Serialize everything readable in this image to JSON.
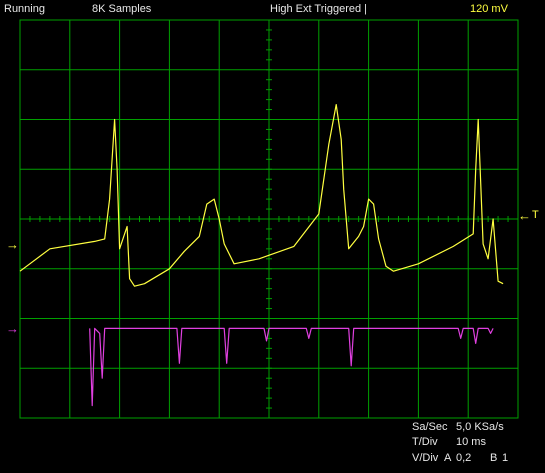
{
  "status": {
    "run_state": "Running",
    "samples": "8K Samples",
    "trigger": "High Ext Triggered",
    "trigger_marker": "|",
    "level": "120 mV",
    "level_color": "#ffff40"
  },
  "markers": {
    "trigger_level": "T",
    "trigger_level_arrow": "←",
    "channel_a_arrow": "→",
    "channel_b_arrow": "→"
  },
  "readout": {
    "samplerate_label": "Sa/Sec",
    "samplerate_value": "5,0 KSa/s",
    "timediv_label": "T/Div",
    "timediv_value": "10 ms",
    "voltdiv_label": "V/Div",
    "channel_a_label": "A",
    "channel_a_value": "0,2",
    "channel_b_label": "B",
    "channel_b_value": "1"
  },
  "colors": {
    "grid": "#00a000",
    "channel_a": "#ffff40",
    "channel_b": "#e040e0",
    "background": "#000000"
  },
  "chart_data": {
    "type": "line",
    "title": "",
    "xlabel": "",
    "ylabel": "",
    "x_unit": "ms",
    "grid": true,
    "xlim": [
      0,
      100
    ],
    "ylim_divisions": [
      -4,
      4
    ],
    "series": [
      {
        "channel": "A",
        "color": "#ffff40",
        "points": [
          [
            0,
            -1.05
          ],
          [
            6,
            -0.6
          ],
          [
            15,
            -0.45
          ],
          [
            17,
            -0.4
          ],
          [
            18,
            0.4
          ],
          [
            19,
            2.0
          ],
          [
            19.5,
            1.0
          ],
          [
            20,
            -0.6
          ],
          [
            21,
            -0.3
          ],
          [
            21.5,
            -0.15
          ],
          [
            22,
            -1.2
          ],
          [
            23,
            -1.35
          ],
          [
            25,
            -1.3
          ],
          [
            30,
            -1.0
          ],
          [
            33,
            -0.65
          ],
          [
            36,
            -0.35
          ],
          [
            37.5,
            0.3
          ],
          [
            39,
            0.4
          ],
          [
            40,
            0.0
          ],
          [
            41,
            -0.5
          ],
          [
            43,
            -0.9
          ],
          [
            48,
            -0.8
          ],
          [
            55,
            -0.55
          ],
          [
            60,
            0.1
          ],
          [
            62,
            1.5
          ],
          [
            63.5,
            2.3
          ],
          [
            64.5,
            1.6
          ],
          [
            65,
            0.6
          ],
          [
            66,
            -0.6
          ],
          [
            68,
            -0.35
          ],
          [
            69,
            -0.15
          ],
          [
            70,
            0.4
          ],
          [
            71,
            0.3
          ],
          [
            72,
            -0.4
          ],
          [
            73.5,
            -0.95
          ],
          [
            75,
            -1.05
          ],
          [
            80,
            -0.9
          ],
          [
            87,
            -0.55
          ],
          [
            91,
            -0.3
          ],
          [
            91.5,
            1.0
          ],
          [
            92,
            2.0
          ],
          [
            93,
            -0.5
          ],
          [
            94,
            -0.8
          ],
          [
            95,
            0.0
          ],
          [
            96,
            -1.25
          ],
          [
            97,
            -1.3
          ]
        ]
      },
      {
        "channel": "B",
        "color": "#e040e0",
        "baseline_div": -2.2,
        "points": [
          [
            14,
            -2.2
          ],
          [
            14.5,
            -3.75
          ],
          [
            15,
            -2.2
          ],
          [
            16,
            -2.3
          ],
          [
            16.5,
            -3.2
          ],
          [
            17,
            -2.2
          ],
          [
            31.5,
            -2.2
          ],
          [
            32,
            -2.9
          ],
          [
            32.5,
            -2.2
          ],
          [
            41,
            -2.2
          ],
          [
            41.5,
            -2.9
          ],
          [
            42,
            -2.2
          ],
          [
            49,
            -2.2
          ],
          [
            49.5,
            -2.45
          ],
          [
            50,
            -2.2
          ],
          [
            57.5,
            -2.2
          ],
          [
            58,
            -2.4
          ],
          [
            58.5,
            -2.2
          ],
          [
            66,
            -2.2
          ],
          [
            66.5,
            -2.95
          ],
          [
            67,
            -2.2
          ],
          [
            88,
            -2.2
          ],
          [
            88.5,
            -2.4
          ],
          [
            89,
            -2.2
          ],
          [
            91,
            -2.2
          ],
          [
            91.5,
            -2.5
          ],
          [
            92,
            -2.2
          ],
          [
            94,
            -2.2
          ],
          [
            94.5,
            -2.3
          ],
          [
            95,
            -2.2
          ]
        ]
      }
    ]
  }
}
